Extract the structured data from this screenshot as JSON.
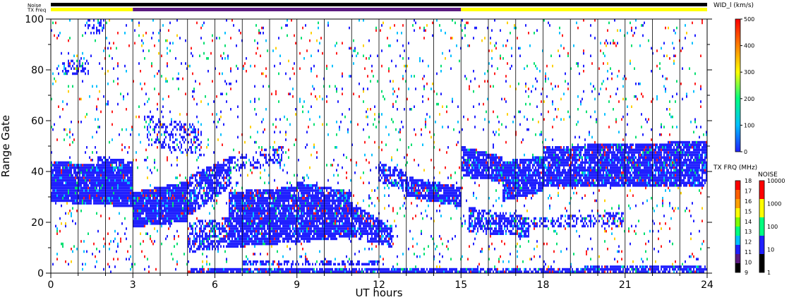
{
  "chart_data": {
    "type": "heatmap",
    "xlabel": "UT hours",
    "ylabel": "Range Gate",
    "xlim": [
      0,
      24
    ],
    "ylim": [
      0,
      100
    ],
    "x_ticks": [
      "0",
      "3",
      "6",
      "9",
      "12",
      "15",
      "18",
      "21",
      "24"
    ],
    "y_ticks": [
      "0",
      "20",
      "40",
      "60",
      "80",
      "100"
    ],
    "top_strips": {
      "noise_label": "Noise",
      "txfreq_label": "TX Freq",
      "txfreq_segments": [
        {
          "start": 0,
          "end": 3,
          "color": "#ffff00"
        },
        {
          "start": 3,
          "end": 15,
          "color": "#5a1a80"
        },
        {
          "start": 15,
          "end": 24,
          "color": "#ffff00"
        }
      ]
    },
    "colorbar_main": {
      "title": "WID_l (km/s)",
      "min": 0,
      "max": 500,
      "ticks": [
        "0",
        "100",
        "200",
        "300",
        "400",
        "500"
      ],
      "stops": [
        "#2020ff",
        "#00c0ff",
        "#00ff80",
        "#ffff00",
        "#ff8000",
        "#ff0000"
      ]
    },
    "colorbar_txfreq": {
      "title": "TX FRQ (MHz)",
      "ticks": [
        "9",
        "10",
        "11",
        "12",
        "13",
        "14",
        "15",
        "16",
        "17",
        "18"
      ],
      "colors": [
        "#000000",
        "#5a1a80",
        "#2020ff",
        "#00c0ff",
        "#00ff80",
        "#80ff00",
        "#ffff00",
        "#ffa000",
        "#ff6000",
        "#ff0000"
      ]
    },
    "colorbar_noise": {
      "title": "NOISE",
      "ticks": [
        "1",
        "10",
        "100",
        "1000",
        "10000"
      ],
      "colors": [
        "#000000",
        "#2020ff",
        "#00ff80",
        "#ffff00",
        "#ff0000"
      ]
    },
    "bands": [
      {
        "x": [
          0,
          3
        ],
        "y": [
          [
            28,
            44
          ],
          [
            26,
            42
          ]
        ],
        "density": 0.95
      },
      {
        "x": [
          1.7,
          3
        ],
        "y": [
          [
            30,
            46
          ],
          [
            28,
            44
          ]
        ],
        "density": 0.85
      },
      {
        "x": [
          3,
          5
        ],
        "y": [
          [
            18,
            32
          ],
          [
            20,
            36
          ]
        ],
        "density": 0.95
      },
      {
        "x": [
          5,
          6.6
        ],
        "y": [
          [
            22,
            38
          ],
          [
            34,
            46
          ]
        ],
        "density": 0.75
      },
      {
        "x": [
          6.6,
          8.5
        ],
        "y": [
          [
            40,
            46
          ],
          [
            42,
            50
          ]
        ],
        "density": 0.35
      },
      {
        "x": [
          5,
          6.5
        ],
        "y": [
          [
            8,
            20
          ],
          [
            10,
            22
          ]
        ],
        "density": 0.6
      },
      {
        "x": [
          6.5,
          9
        ],
        "y": [
          [
            10,
            32
          ],
          [
            12,
            34
          ]
        ],
        "density": 0.9
      },
      {
        "x": [
          9,
          11
        ],
        "y": [
          [
            12,
            36
          ],
          [
            14,
            32
          ]
        ],
        "density": 0.9
      },
      {
        "x": [
          11,
          12.5
        ],
        "y": [
          [
            14,
            28
          ],
          [
            10,
            18
          ]
        ],
        "density": 0.8
      },
      {
        "x": [
          12,
          13
        ],
        "y": [
          [
            36,
            44
          ],
          [
            32,
            40
          ]
        ],
        "density": 0.7
      },
      {
        "x": [
          13,
          15
        ],
        "y": [
          [
            30,
            38
          ],
          [
            26,
            34
          ]
        ],
        "density": 0.9
      },
      {
        "x": [
          15,
          16.5
        ],
        "y": [
          [
            38,
            50
          ],
          [
            36,
            46
          ]
        ],
        "density": 0.9
      },
      {
        "x": [
          16.5,
          18
        ],
        "y": [
          [
            28,
            44
          ],
          [
            32,
            46
          ]
        ],
        "density": 0.9
      },
      {
        "x": [
          18,
          24
        ],
        "y": [
          [
            34,
            50
          ],
          [
            34,
            52
          ]
        ],
        "density": 0.9
      },
      {
        "x": [
          15.3,
          17.5
        ],
        "y": [
          [
            16,
            26
          ],
          [
            14,
            22
          ]
        ],
        "density": 0.7
      },
      {
        "x": [
          17.5,
          21
        ],
        "y": [
          [
            18,
            22
          ],
          [
            18,
            24
          ]
        ],
        "density": 0.45
      },
      {
        "x": [
          5,
          15
        ],
        "y": [
          [
            0,
            2
          ],
          [
            0,
            2
          ]
        ],
        "density": 0.85
      },
      {
        "x": [
          15,
          24
        ],
        "y": [
          [
            0,
            2
          ],
          [
            0,
            3
          ]
        ],
        "density": 0.8
      },
      {
        "x": [
          7,
          12
        ],
        "y": [
          [
            3,
            5
          ],
          [
            3,
            5
          ]
        ],
        "density": 0.55
      },
      {
        "x": [
          3.5,
          5.5
        ],
        "y": [
          [
            50,
            62
          ],
          [
            46,
            58
          ]
        ],
        "density": 0.35
      },
      {
        "x": [
          0.4,
          1.4
        ],
        "y": [
          [
            78,
            84
          ],
          [
            78,
            84
          ]
        ],
        "density": 0.35
      },
      {
        "x": [
          1.2,
          2
        ],
        "y": [
          [
            94,
            100
          ],
          [
            94,
            100
          ]
        ],
        "density": 0.3
      }
    ],
    "background_scatter_fraction": 0.045
  }
}
